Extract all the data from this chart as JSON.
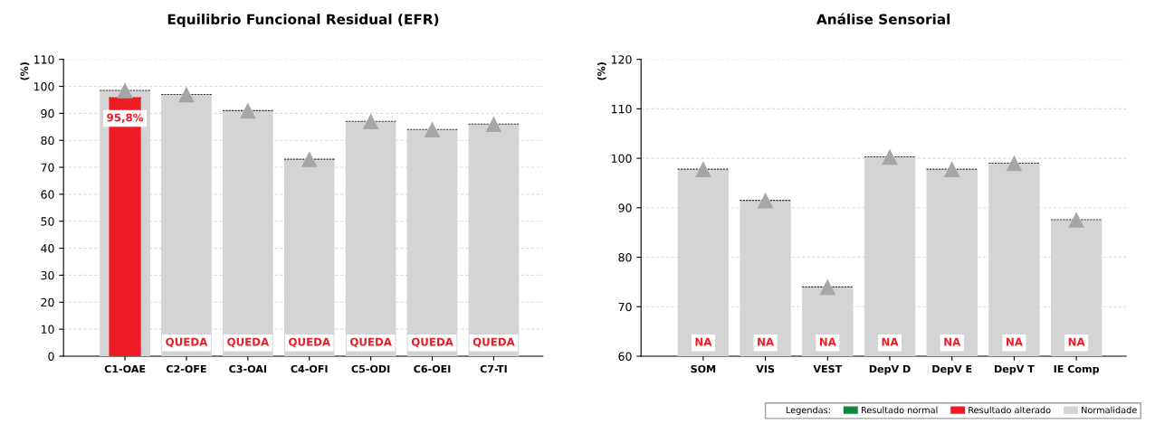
{
  "chart_data": [
    {
      "type": "bar",
      "title": "Equilibrio Funcional Residual (EFR)",
      "ylabel": "(%)",
      "categories": [
        "C1-OAE",
        "C2-OFE",
        "C3-OAI",
        "C4-OFI",
        "C5-ODI",
        "C6-OEI",
        "C7-TI"
      ],
      "ylim": [
        0,
        110
      ],
      "yticks": [
        0,
        10,
        20,
        30,
        40,
        50,
        60,
        70,
        80,
        90,
        100,
        110
      ],
      "grid": "y",
      "series": [
        {
          "color": "#d4d4d4",
          "values": [
            98.5,
            97,
            91,
            73,
            87,
            84,
            86
          ]
        },
        {
          "type": "scatter",
          "marker": "triangle",
          "color": "#a6a6a6",
          "values": [
            98.5,
            97,
            91,
            73,
            87,
            84,
            86
          ]
        },
        {
          "type": "bar",
          "color": "#ee1c25",
          "values": [
            95.8,
            null,
            null,
            null,
            null,
            null,
            null
          ],
          "value_labels": [
            "95,8%",
            "QUEDA",
            "QUEDA",
            "QUEDA",
            "QUEDA",
            "QUEDA",
            "QUEDA"
          ]
        }
      ]
    },
    {
      "type": "bar",
      "title": "Análise Sensorial",
      "ylabel": "(%)",
      "categories": [
        "SOM",
        "VIS",
        "VEST",
        "DepV D",
        "DepV E",
        "DepV T",
        "IE Comp"
      ],
      "ylim": [
        60,
        120
      ],
      "yticks": [
        60,
        70,
        80,
        90,
        100,
        110,
        120
      ],
      "grid": "y",
      "legend": "bottom right",
      "legend_title": "Legendas:",
      "series": [
        {
          "name": "Normalidade",
          "color": "#d4d4d4",
          "values": [
            97.8,
            91.5,
            74,
            100.3,
            97.8,
            99,
            87.6
          ]
        },
        {
          "type": "scatter",
          "marker": "triangle",
          "color": "#a6a6a6",
          "values": [
            97.8,
            91.5,
            74,
            100.3,
            97.8,
            99,
            87.6
          ]
        },
        {
          "type": "bar",
          "name": "Resultado alterado",
          "color": "#ee1c25",
          "values": [
            null,
            null,
            null,
            null,
            null,
            null,
            null
          ],
          "value_labels": [
            "NA",
            "NA",
            "NA",
            "NA",
            "NA",
            "NA",
            "NA"
          ]
        },
        {
          "type": "bar",
          "name": "Resultado normal",
          "color": "#13883c",
          "values": [
            null,
            null,
            null,
            null,
            null,
            null,
            null
          ]
        }
      ]
    }
  ]
}
